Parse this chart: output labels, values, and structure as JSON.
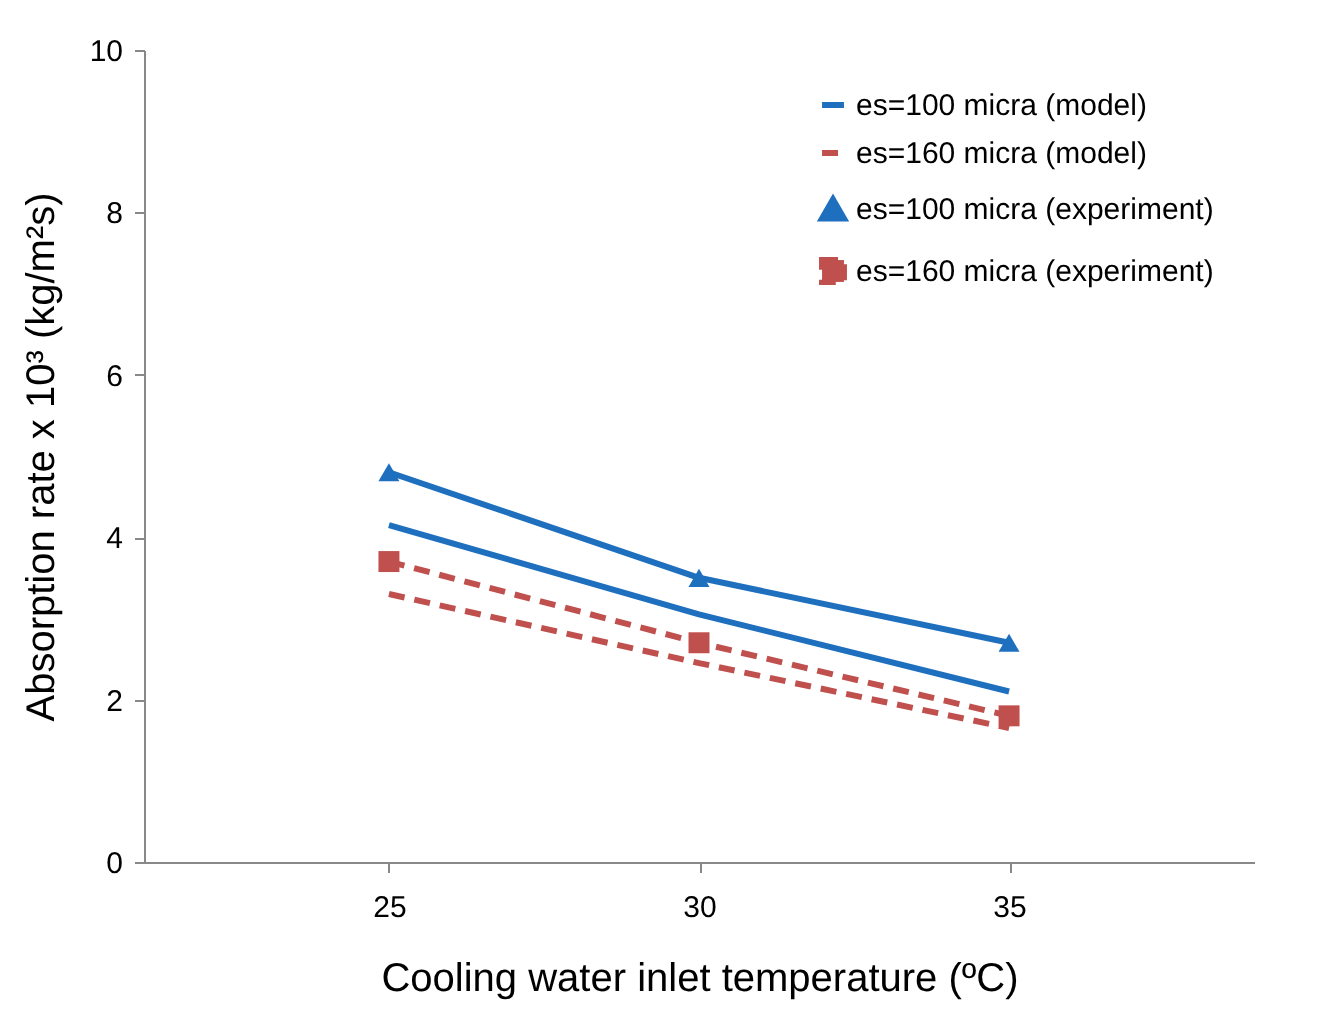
{
  "chart_data": {
    "type": "line",
    "xlabel": "Cooling water inlet temperature (ºC)",
    "ylabel": "Absorption rate x 10³ (kg/m²s)",
    "categories": [
      "25",
      "30",
      "35"
    ],
    "series": [
      {
        "name": "es=100 micra (model)",
        "color": "#1f6fbf",
        "values": [
          4.15,
          3.05,
          2.1
        ],
        "line_style": "solid",
        "marker": "none"
      },
      {
        "name": "es=160 micra (model)",
        "color": "#c0504d",
        "values": [
          3.3,
          2.45,
          1.65
        ],
        "line_style": "dashed",
        "marker": "none"
      },
      {
        "name": "es=100 micra (experiment)",
        "color": "#1f6fbf",
        "values": [
          4.8,
          3.5,
          2.7
        ],
        "line_style": "solid",
        "marker": "triangle"
      },
      {
        "name": "es=160 micra (experiment)",
        "color": "#c0504d",
        "values": [
          3.7,
          2.7,
          1.8
        ],
        "line_style": "dashed",
        "marker": "square"
      }
    ],
    "ylim": [
      0,
      10
    ],
    "yticks": [
      0,
      2,
      4,
      6,
      8,
      10
    ],
    "legend": "top right"
  }
}
